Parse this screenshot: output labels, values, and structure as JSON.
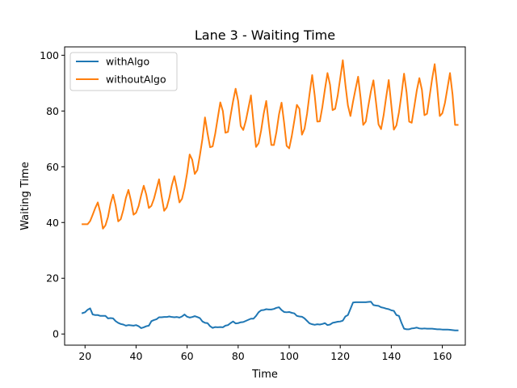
{
  "chart_data": {
    "type": "line",
    "title": "Lane 3 - Waiting Time",
    "xlabel": "Time",
    "ylabel": "Waiting Time",
    "xlim": [
      12,
      169
    ],
    "ylim": [
      -4,
      103
    ],
    "xticks": [
      20,
      40,
      60,
      80,
      100,
      120,
      140,
      160
    ],
    "yticks": [
      0,
      20,
      40,
      60,
      80,
      100
    ],
    "grid": false,
    "legend_position": "top-left",
    "series": [
      {
        "name": "withAlgo",
        "color": "#1f77b4",
        "x": [
          19,
          20,
          21,
          22,
          23,
          24,
          25,
          26,
          27,
          28,
          29,
          30,
          31,
          32,
          33,
          34,
          35,
          36,
          37,
          38,
          39,
          40,
          41,
          42,
          43,
          44,
          45,
          46,
          47,
          48,
          49,
          50,
          51,
          52,
          53,
          54,
          55,
          56,
          57,
          58,
          59,
          60,
          61,
          62,
          63,
          64,
          65,
          66,
          67,
          68,
          69,
          70,
          71,
          72,
          73,
          74,
          75,
          76,
          77,
          78,
          79,
          80,
          81,
          82,
          83,
          84,
          85,
          86,
          87,
          88,
          89,
          90,
          91,
          92,
          93,
          94,
          95,
          96,
          97,
          98,
          99,
          100,
          101,
          102,
          103,
          104,
          105,
          106,
          107,
          108,
          109,
          110,
          111,
          112,
          113,
          114,
          115,
          116,
          117,
          118,
          119,
          120,
          121,
          122,
          123,
          124,
          125,
          126,
          127,
          128,
          129,
          130,
          131,
          132,
          133,
          134,
          135,
          136,
          137,
          138,
          139,
          140,
          141,
          142,
          143,
          144,
          145,
          146,
          147,
          148,
          149,
          150,
          151,
          152,
          153,
          154,
          155,
          156,
          157,
          158,
          159,
          160,
          161,
          162,
          163,
          164,
          165,
          166
        ],
        "y": [
          7.5,
          7.8,
          8.7,
          9.2,
          7.0,
          6.8,
          6.8,
          6.5,
          6.5,
          6.5,
          5.6,
          5.7,
          5.6,
          4.6,
          4.0,
          3.6,
          3.4,
          3.0,
          3.2,
          3.1,
          3.0,
          3.2,
          2.8,
          2.1,
          2.4,
          2.8,
          3.0,
          4.6,
          5.0,
          5.3,
          6.0,
          6.0,
          6.1,
          6.1,
          6.3,
          6.1,
          6.0,
          6.1,
          5.9,
          6.3,
          7.0,
          6.2,
          5.9,
          6.1,
          6.4,
          6.1,
          5.7,
          4.5,
          4.0,
          3.9,
          2.8,
          2.2,
          2.5,
          2.4,
          2.5,
          2.4,
          3.0,
          3.2,
          3.9,
          4.5,
          3.8,
          3.9,
          4.2,
          4.3,
          4.7,
          5.1,
          5.5,
          5.5,
          6.5,
          7.8,
          8.5,
          8.6,
          8.9,
          8.8,
          8.8,
          9.0,
          9.4,
          9.6,
          8.6,
          7.9,
          7.8,
          7.9,
          7.6,
          7.4,
          6.5,
          6.3,
          6.2,
          5.6,
          4.7,
          3.8,
          3.5,
          3.3,
          3.5,
          3.4,
          3.6,
          3.9,
          3.2,
          3.4,
          4.0,
          4.2,
          4.4,
          4.5,
          4.8,
          6.3,
          6.8,
          9.0,
          11.3,
          11.4,
          11.4,
          11.4,
          11.4,
          11.4,
          11.5,
          11.6,
          10.4,
          10.2,
          10.1,
          9.6,
          9.4,
          9.1,
          8.9,
          8.5,
          8.3,
          6.8,
          6.5,
          4.0,
          1.9,
          1.7,
          1.7,
          2.0,
          2.1,
          2.3,
          2.0,
          1.9,
          2.0,
          1.9,
          1.9,
          1.9,
          1.8,
          1.7,
          1.7,
          1.6,
          1.6,
          1.6,
          1.5,
          1.4,
          1.3,
          1.3
        ]
      },
      {
        "name": "withoutAlgo",
        "color": "#ff7f0e",
        "x": [
          19,
          20,
          21,
          22,
          23,
          24,
          25,
          26,
          27,
          28,
          29,
          30,
          31,
          32,
          33,
          34,
          35,
          36,
          37,
          38,
          39,
          40,
          41,
          42,
          43,
          44,
          45,
          46,
          47,
          48,
          49,
          50,
          51,
          52,
          53,
          54,
          55,
          56,
          57,
          58,
          59,
          60,
          61,
          62,
          63,
          64,
          65,
          66,
          67,
          68,
          69,
          70,
          71,
          72,
          73,
          74,
          75,
          76,
          77,
          78,
          79,
          80,
          81,
          82,
          83,
          84,
          85,
          86,
          87,
          88,
          89,
          90,
          91,
          92,
          93,
          94,
          95,
          96,
          97,
          98,
          99,
          100,
          101,
          102,
          103,
          104,
          105,
          106,
          107,
          108,
          109,
          110,
          111,
          112,
          113,
          114,
          115,
          116,
          117,
          118,
          119,
          120,
          121,
          122,
          123,
          124,
          125,
          126,
          127,
          128,
          129,
          130,
          131,
          132,
          133,
          134,
          135,
          136,
          137,
          138,
          139,
          140,
          141,
          142,
          143,
          144,
          145,
          146,
          147,
          148,
          149,
          150,
          151,
          152,
          153,
          154,
          155,
          156,
          157,
          158,
          159,
          160,
          161,
          162,
          163,
          164,
          165,
          166
        ],
        "y": [
          39.4,
          39.4,
          39.4,
          40.5,
          42.8,
          45.2,
          47.2,
          43.5,
          37.8,
          39.0,
          42.0,
          46.8,
          50.0,
          46.0,
          40.4,
          41.2,
          44.5,
          48.8,
          51.7,
          47.8,
          42.8,
          43.5,
          45.9,
          49.8,
          53.2,
          50.0,
          45.2,
          46.0,
          48.5,
          52.0,
          55.5,
          49.5,
          44.2,
          45.4,
          48.8,
          53.3,
          56.6,
          52.2,
          47.2,
          48.5,
          52.4,
          57.7,
          64.4,
          62.5,
          57.4,
          58.8,
          64.1,
          70.0,
          77.7,
          72.0,
          67.0,
          67.3,
          71.8,
          77.5,
          83.1,
          80.0,
          72.2,
          72.5,
          78.2,
          83.5,
          88.0,
          83.6,
          74.6,
          73.2,
          76.5,
          81.0,
          85.6,
          76.0,
          67.1,
          68.4,
          73.0,
          79.0,
          83.6,
          75.3,
          67.8,
          67.8,
          72.5,
          78.8,
          83.0,
          75.8,
          67.5,
          66.6,
          71.0,
          76.5,
          82.2,
          80.8,
          71.5,
          73.6,
          79.0,
          86.3,
          92.9,
          85.5,
          76.2,
          76.3,
          81.5,
          87.8,
          93.6,
          89.4,
          80.3,
          80.8,
          85.5,
          91.8,
          98.2,
          89.6,
          82.0,
          78.2,
          83.3,
          87.9,
          92.3,
          84.5,
          75.0,
          76.2,
          81.8,
          87.0,
          91.0,
          83.2,
          75.2,
          73.5,
          78.5,
          85.0,
          91.1,
          82.2,
          73.3,
          74.8,
          79.5,
          86.0,
          93.4,
          86.6,
          76.2,
          75.8,
          81.5,
          87.4,
          91.8,
          87.6,
          78.5,
          79.0,
          85.2,
          91.5,
          96.8,
          88.4,
          78.2,
          79.2,
          82.8,
          88.2,
          93.6,
          86.0,
          75.0,
          75.0
        ]
      }
    ]
  }
}
